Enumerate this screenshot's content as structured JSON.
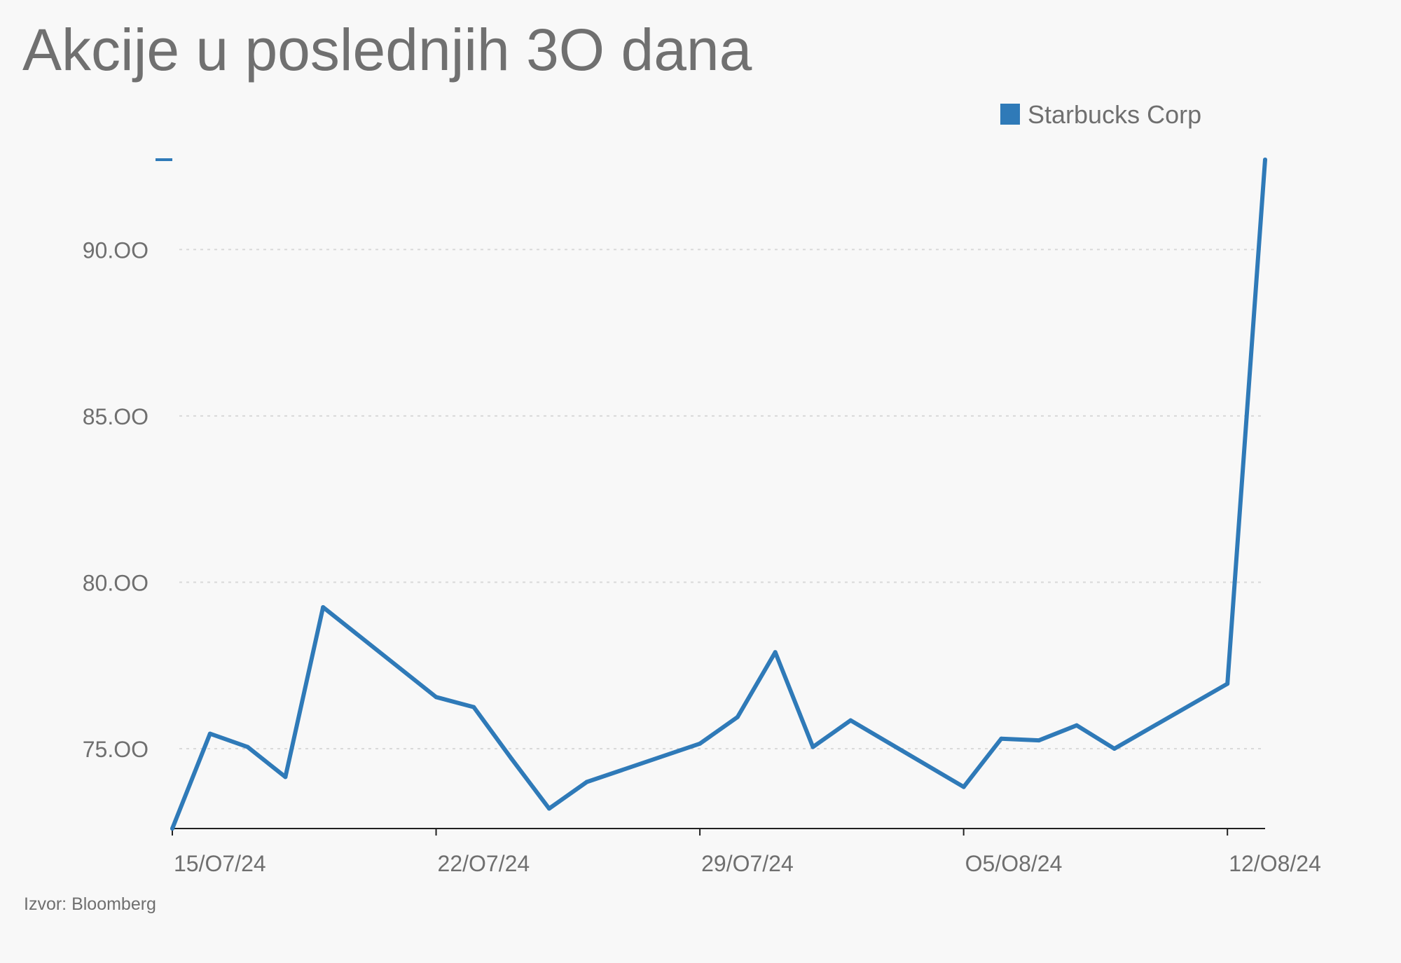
{
  "chart_data": {
    "type": "line",
    "title": "Akcije u poslednjih 3O dana",
    "source": "Izvor: Bloomberg",
    "legend": {
      "placement": "top-right",
      "entries": [
        "Starbucks Corp"
      ]
    },
    "color": "#2f7ab8",
    "grid": true,
    "ylim": [
      72.6,
      92.7
    ],
    "xlim": [
      "15/07/24",
      "13/08/24"
    ],
    "y_ticks": [
      {
        "value": 75,
        "label": "75.OO"
      },
      {
        "value": 80,
        "label": "80.OO"
      },
      {
        "value": 85,
        "label": "85.OO"
      },
      {
        "value": 90,
        "label": "90.OO"
      }
    ],
    "x_ticks": [
      {
        "day": 0,
        "label": "15/O7/24"
      },
      {
        "day": 7,
        "label": "22/O7/24"
      },
      {
        "day": 14,
        "label": "29/O7/24"
      },
      {
        "day": 21,
        "label": "O5/O8/24"
      },
      {
        "day": 28,
        "label": "12/O8/24"
      }
    ],
    "series": [
      {
        "name": "Starbucks Corp",
        "x": [
          "15/07/24",
          "16/07/24",
          "17/07/24",
          "18/07/24",
          "19/07/24",
          "22/07/24",
          "23/07/24",
          "24/07/24",
          "25/07/24",
          "26/07/24",
          "29/07/24",
          "30/07/24",
          "31/07/24",
          "01/08/24",
          "02/08/24",
          "05/08/24",
          "06/08/24",
          "07/08/24",
          "08/08/24",
          "09/08/24",
          "12/08/24",
          "13/08/24"
        ],
        "day": [
          0,
          1,
          2,
          3,
          4,
          7,
          8,
          9,
          10,
          11,
          14,
          15,
          16,
          17,
          18,
          21,
          22,
          23,
          24,
          25,
          28,
          29
        ],
        "values": [
          72.6,
          75.45,
          75.05,
          74.15,
          79.25,
          76.55,
          76.25,
          74.7,
          73.2,
          74.0,
          75.15,
          75.95,
          77.9,
          75.05,
          75.85,
          73.85,
          75.3,
          75.25,
          75.7,
          75.0,
          76.95,
          92.7
        ]
      }
    ]
  }
}
